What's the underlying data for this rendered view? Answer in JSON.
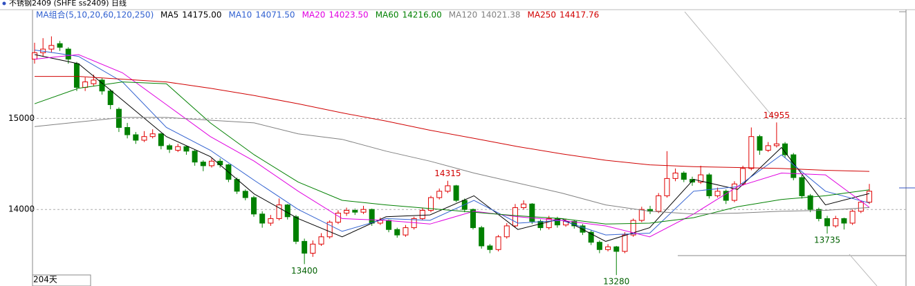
{
  "chart_data": {
    "type": "candlestick",
    "title": "不锈钢2409 (SHFE ss2409) 日线",
    "indicator": "MA组合(5,10,20,60,120,250)",
    "period_label": "204天",
    "ylim": [
      13160,
      16170
    ],
    "yticks": [
      14000,
      15000
    ],
    "grid": true,
    "up_color": "#e00000",
    "down_color": "#008000",
    "candles": [
      [
        15650,
        15830,
        15600,
        15720
      ],
      [
        15720,
        15880,
        15680,
        15760
      ],
      [
        15760,
        15900,
        15720,
        15800
      ],
      [
        15820,
        15850,
        15740,
        15780
      ],
      [
        15760,
        15780,
        15600,
        15650
      ],
      [
        15600,
        15620,
        15300,
        15340
      ],
      [
        15340,
        15450,
        15300,
        15400
      ],
      [
        15380,
        15480,
        15350,
        15420
      ],
      [
        15420,
        15440,
        15260,
        15300
      ],
      [
        15300,
        15320,
        15100,
        15150
      ],
      [
        15100,
        15120,
        14850,
        14900
      ],
      [
        14900,
        14950,
        14780,
        14820
      ],
      [
        14820,
        14850,
        14720,
        14760
      ],
      [
        14760,
        14860,
        14740,
        14800
      ],
      [
        14800,
        14880,
        14780,
        14830
      ],
      [
        14830,
        14840,
        14660,
        14700
      ],
      [
        14700,
        14720,
        14620,
        14660
      ],
      [
        14650,
        14720,
        14630,
        14690
      ],
      [
        14690,
        14700,
        14600,
        14640
      ],
      [
        14640,
        14660,
        14480,
        14520
      ],
      [
        14520,
        14540,
        14420,
        14480
      ],
      [
        14480,
        14560,
        14460,
        14530
      ],
      [
        14530,
        14560,
        14460,
        14490
      ],
      [
        14490,
        14500,
        14300,
        14330
      ],
      [
        14330,
        14350,
        14170,
        14200
      ],
      [
        14200,
        14220,
        14100,
        14130
      ],
      [
        14130,
        14150,
        13920,
        13950
      ],
      [
        13950,
        13980,
        13800,
        13850
      ],
      [
        13850,
        13940,
        13820,
        13900
      ],
      [
        13900,
        14120,
        13880,
        14050
      ],
      [
        14050,
        14060,
        13890,
        13920
      ],
      [
        13920,
        13940,
        13620,
        13650
      ],
      [
        13650,
        13680,
        13400,
        13520
      ],
      [
        13520,
        13660,
        13480,
        13620
      ],
      [
        13620,
        13740,
        13600,
        13700
      ],
      [
        13700,
        13880,
        13680,
        13860
      ],
      [
        13860,
        13990,
        13840,
        13960
      ],
      [
        13960,
        14020,
        13930,
        13990
      ],
      [
        13990,
        14010,
        13940,
        13970
      ],
      [
        13970,
        14040,
        13950,
        14000
      ],
      [
        14000,
        14010,
        13820,
        13850
      ],
      [
        13850,
        13910,
        13830,
        13880
      ],
      [
        13880,
        13890,
        13750,
        13780
      ],
      [
        13780,
        13800,
        13690,
        13720
      ],
      [
        13720,
        13830,
        13700,
        13800
      ],
      [
        13800,
        13920,
        13780,
        13900
      ],
      [
        13900,
        14020,
        13880,
        13990
      ],
      [
        13990,
        14150,
        13970,
        14130
      ],
      [
        14130,
        14230,
        14110,
        14200
      ],
      [
        14200,
        14315,
        14180,
        14260
      ],
      [
        14260,
        14270,
        14080,
        14100
      ],
      [
        14100,
        14120,
        13970,
        14000
      ],
      [
        14000,
        14010,
        13780,
        13800
      ],
      [
        13800,
        13820,
        13570,
        13600
      ],
      [
        13600,
        13620,
        13520,
        13560
      ],
      [
        13560,
        13720,
        13540,
        13700
      ],
      [
        13700,
        13850,
        13680,
        13820
      ],
      [
        13820,
        14060,
        13800,
        14020
      ],
      [
        14020,
        14100,
        14000,
        14060
      ],
      [
        14060,
        14070,
        13840,
        13870
      ],
      [
        13870,
        13890,
        13770,
        13800
      ],
      [
        13800,
        13930,
        13780,
        13900
      ],
      [
        13900,
        13920,
        13800,
        13830
      ],
      [
        13830,
        13900,
        13810,
        13870
      ],
      [
        13870,
        13880,
        13790,
        13820
      ],
      [
        13820,
        13840,
        13720,
        13750
      ],
      [
        13750,
        13770,
        13610,
        13640
      ],
      [
        13640,
        13660,
        13520,
        13560
      ],
      [
        13560,
        13620,
        13540,
        13590
      ],
      [
        13590,
        13600,
        13280,
        13540
      ],
      [
        13540,
        13750,
        13520,
        13720
      ],
      [
        13720,
        13900,
        13700,
        13880
      ],
      [
        13880,
        14030,
        13860,
        14000
      ],
      [
        14000,
        14040,
        13950,
        13980
      ],
      [
        13980,
        14180,
        13960,
        14150
      ],
      [
        14150,
        14640,
        14130,
        14340
      ],
      [
        14340,
        14450,
        14310,
        14400
      ],
      [
        14400,
        14420,
        14300,
        14330
      ],
      [
        14330,
        14360,
        14260,
        14300
      ],
      [
        14300,
        14480,
        14280,
        14380
      ],
      [
        14380,
        14400,
        14120,
        14150
      ],
      [
        14150,
        14240,
        14130,
        14200
      ],
      [
        14200,
        14220,
        14060,
        14100
      ],
      [
        14100,
        14310,
        14080,
        14280
      ],
      [
        14280,
        14480,
        14260,
        14450
      ],
      [
        14450,
        14900,
        14430,
        14800
      ],
      [
        14800,
        14820,
        14600,
        14650
      ],
      [
        14650,
        14740,
        14630,
        14700
      ],
      [
        14700,
        14955,
        14680,
        14720
      ],
      [
        14720,
        14740,
        14570,
        14600
      ],
      [
        14600,
        14620,
        14320,
        14350
      ],
      [
        14350,
        14380,
        14120,
        14150
      ],
      [
        14150,
        14170,
        13970,
        14000
      ],
      [
        14000,
        14020,
        13870,
        13900
      ],
      [
        13900,
        13930,
        13735,
        13820
      ],
      [
        13820,
        13930,
        13800,
        13900
      ],
      [
        13900,
        13910,
        13780,
        13850
      ],
      [
        13850,
        14000,
        13830,
        13980
      ],
      [
        13980,
        14100,
        13960,
        14080
      ],
      [
        14080,
        14280,
        14060,
        14200
      ]
    ],
    "series": [
      {
        "name": "MA5",
        "label": "14175.00",
        "color": "#000000",
        "values": [
          15700,
          15600,
          15200,
          14800,
          14580,
          14170,
          13900,
          13700,
          13920,
          13940,
          14150,
          13780,
          13900,
          13650,
          13800,
          14330,
          14220,
          14680,
          14050,
          14175
        ]
      },
      {
        "name": "MA10",
        "label": "14071.50",
        "color": "#3060d0",
        "values": [
          15750,
          15680,
          15400,
          14900,
          14650,
          14320,
          14000,
          13760,
          13900,
          13880,
          14100,
          13850,
          13880,
          13720,
          13740,
          14200,
          14250,
          14600,
          14200,
          14071.5
        ]
      },
      {
        "name": "MA20",
        "label": "14023.50",
        "color": "#e000e0",
        "values": [
          15650,
          15700,
          15500,
          15150,
          14800,
          14530,
          14200,
          13900,
          13880,
          13840,
          13980,
          13920,
          13880,
          13820,
          13700,
          13950,
          14250,
          14400,
          14380,
          14023.5
        ]
      },
      {
        "name": "MA60",
        "label": "14216.00",
        "color": "#008000",
        "values": [
          15160,
          15330,
          15400,
          15380,
          14950,
          14600,
          14300,
          14100,
          14050,
          14010,
          13970,
          13930,
          13900,
          13840,
          13850,
          13910,
          14030,
          14110,
          14150,
          14216
        ]
      },
      {
        "name": "MA120",
        "label": "14021.38",
        "color": "#808080",
        "values": [
          14910,
          14960,
          15010,
          15010,
          14980,
          14950,
          14830,
          14770,
          14640,
          14530,
          14400,
          14290,
          14180,
          14050,
          13980,
          13950,
          13960,
          13980,
          13990,
          14021.38
        ]
      },
      {
        "name": "MA250",
        "label": "14417.76",
        "color": "#d00000",
        "values": [
          15460,
          15460,
          15430,
          15400,
          15330,
          15250,
          15160,
          15060,
          14970,
          14870,
          14780,
          14690,
          14610,
          14540,
          14490,
          14470,
          14460,
          14450,
          14430,
          14417.76
        ]
      }
    ],
    "annotations": [
      {
        "label": "14315",
        "candle": 49,
        "side": "high"
      },
      {
        "label": "13400",
        "candle": 32,
        "side": "low"
      },
      {
        "label": "13280",
        "candle": 69,
        "side": "low"
      },
      {
        "label": "14955",
        "candle": 88,
        "side": "high"
      },
      {
        "label": "13735",
        "candle": 94,
        "side": "low"
      }
    ]
  }
}
